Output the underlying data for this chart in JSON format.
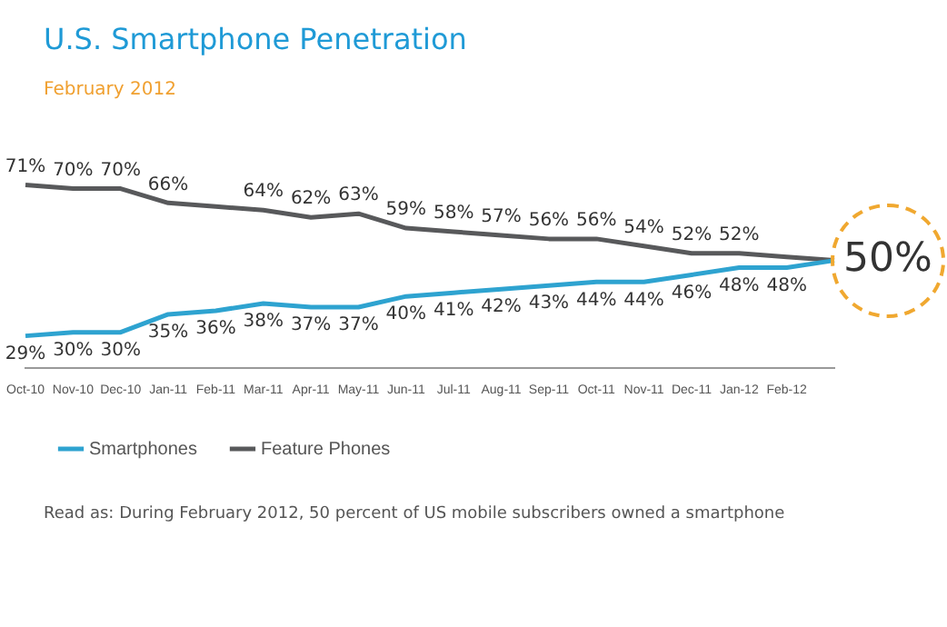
{
  "chart_data": {
    "type": "line",
    "title": "U.S. Smartphone Penetration",
    "subtitle": "February 2012",
    "categories": [
      "Oct-10",
      "Nov-10",
      "Dec-10",
      "Jan-11",
      "Feb-11",
      "Mar-11",
      "Apr-11",
      "May-11",
      "Jun-11",
      "Jul-11",
      "Aug-11",
      "Sep-11",
      "Oct-11",
      "Nov-11",
      "Dec-11",
      "Jan-12",
      "Feb-12",
      null
    ],
    "tick_labels": "x",
    "grid": false,
    "legend": "bottom",
    "marker": "none",
    "line_style": "solid",
    "series": [
      {
        "name": "Smartphones",
        "color": "#2ea3d0",
        "values": [
          29,
          30,
          30,
          35,
          36,
          38,
          37,
          37,
          40,
          41,
          42,
          43,
          44,
          44,
          46,
          48,
          48,
          50
        ],
        "value_labels": [
          "29%",
          "30%",
          "30%",
          "35%",
          "36%",
          "38%",
          "37%",
          "37%",
          "40%",
          "41%",
          "42%",
          "43%",
          "44%",
          "44%",
          "46%",
          "48%",
          "48%",
          null
        ]
      },
      {
        "name": "Feature Phones",
        "color": "#58595b",
        "values": [
          71,
          70,
          70,
          66,
          65,
          64,
          62,
          63,
          59,
          58,
          57,
          56,
          56,
          54,
          52,
          52,
          51,
          50
        ],
        "value_labels": [
          "71%",
          "70%",
          "70%",
          "66%",
          null,
          "64%",
          "62%",
          "63%",
          "59%",
          "58%",
          "57%",
          "56%",
          "56%",
          "54%",
          "52%",
          "52%",
          null,
          null
        ]
      }
    ],
    "annotations": [
      "50%",
      "Read as: During February 2012, 50 percent of US mobile subscribers owned a smartphone"
    ]
  }
}
